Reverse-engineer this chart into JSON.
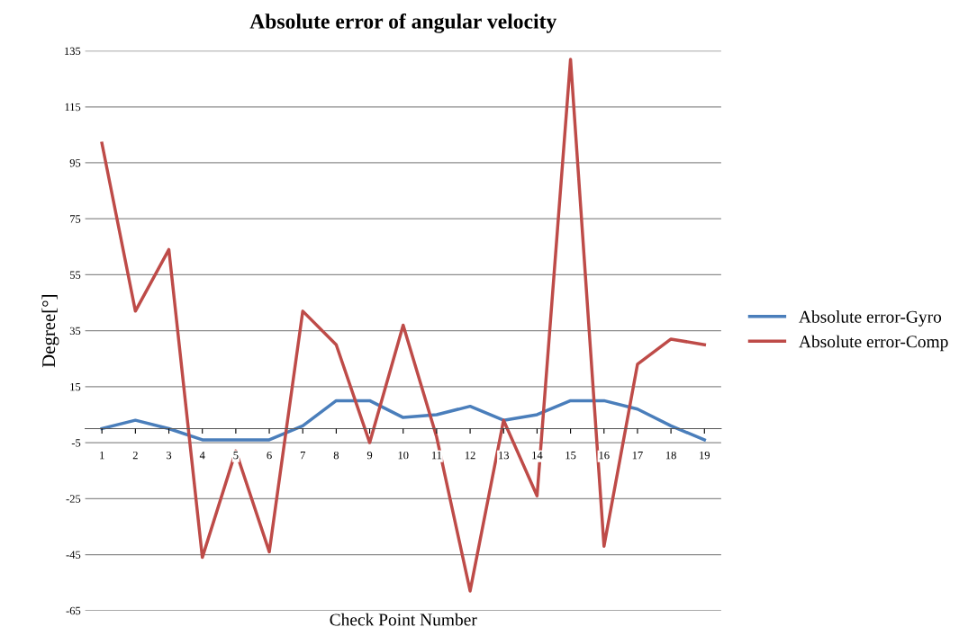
{
  "chart_data": {
    "type": "line",
    "title": "Absolute error of angular velocity",
    "xlabel": "Check Point Number",
    "ylabel": "Degree[°]",
    "categories": [
      "1",
      "2",
      "3",
      "4",
      "5",
      "6",
      "7",
      "8",
      "9",
      "10",
      "11",
      "12",
      "13",
      "14",
      "15",
      "16",
      "17",
      "18",
      "19"
    ],
    "series": [
      {
        "name": "Absolute error-Gyro",
        "color": "#4a7ebb",
        "values": [
          0,
          3,
          0,
          -4,
          -4,
          -4,
          1,
          10,
          10,
          4,
          5,
          8,
          3,
          5,
          10,
          10,
          7,
          1,
          -4
        ]
      },
      {
        "name": "Absolute error-Comp",
        "color": "#be4b48",
        "values": [
          102,
          42,
          64,
          -46,
          -8,
          -44,
          42,
          30,
          -5,
          37,
          -3,
          -58,
          3,
          -24,
          132,
          -42,
          23,
          32,
          30
        ]
      }
    ],
    "ylim": [
      -65,
      135
    ],
    "yticks": [
      -65,
      -45,
      -25,
      -5,
      15,
      35,
      55,
      75,
      95,
      115,
      135
    ],
    "grid": "y",
    "legend": "right",
    "marker": "none",
    "line_style": "solid"
  }
}
